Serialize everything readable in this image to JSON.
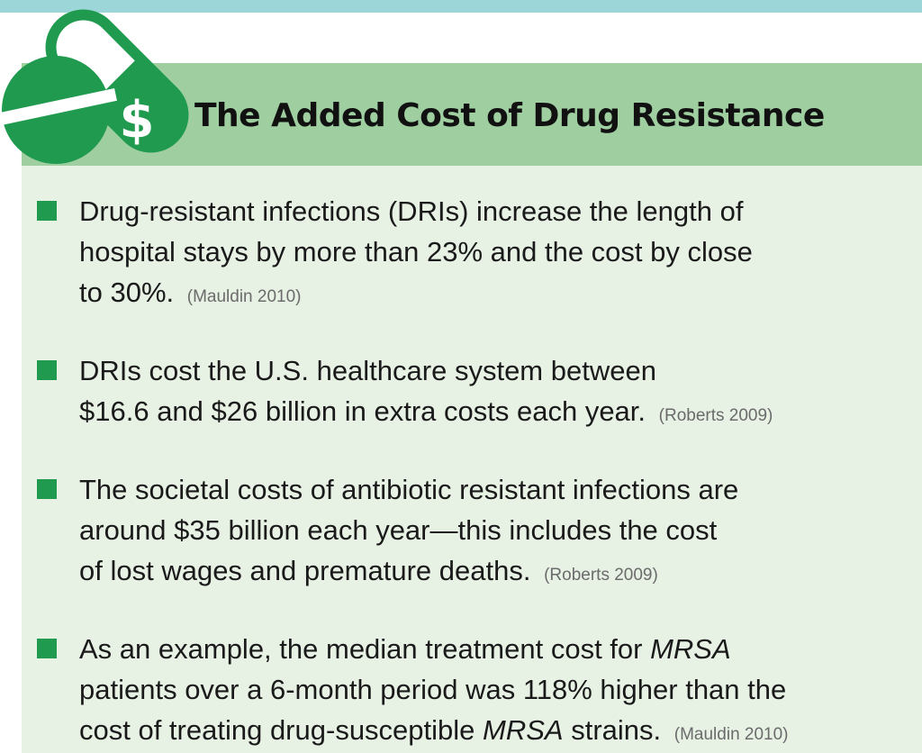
{
  "title": "The Added Cost of Drug Resistance",
  "logo": {
    "icon": "pill-dollar-icon",
    "symbol": "$"
  },
  "colors": {
    "stripe": "#9dd6d8",
    "header": "#9fcfa0",
    "panel": "#e7f1e4",
    "bullet": "#1f9a4e",
    "pill": "#1f9a4e"
  },
  "items": [
    {
      "lines": [
        "Drug-resistant infections (DRIs) increase the length of",
        "hospital stays by more than 23% and the cost by close",
        "to 30%."
      ],
      "citation": "(Mauldin 2010)"
    },
    {
      "lines": [
        "DRIs cost the U.S. healthcare system between",
        "$16.6 and $26 billion in extra costs each year."
      ],
      "citation": "(Roberts 2009)"
    },
    {
      "lines": [
        "The societal costs of antibiotic resistant infections are",
        "around $35 billion each year—this includes the cost",
        "of lost wages and premature deaths."
      ],
      "citation": "(Roberts 2009)"
    },
    {
      "line1_pre": "As an example, the median treatment cost for ",
      "line1_em": "MRSA",
      "line2": "patients over a 6-month period was 118% higher than the",
      "line3_pre": "cost of treating drug-susceptible ",
      "line3_em": "MRSA",
      "line3_post": " strains.",
      "citation": "(Mauldin 2010)"
    }
  ]
}
